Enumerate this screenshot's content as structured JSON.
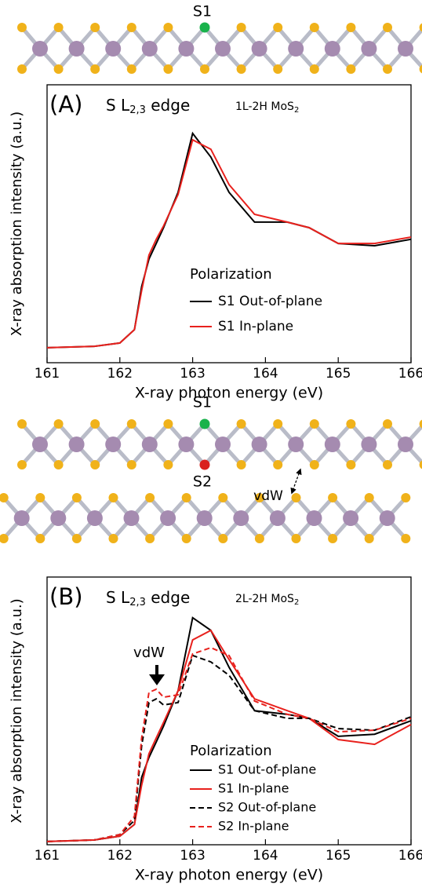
{
  "chart_data": [
    {
      "type": "line",
      "panel_label": "(A)",
      "edge_label": [
        "S L",
        "2,3",
        " edge"
      ],
      "sample_label": [
        "1L-2H MoS",
        "2"
      ],
      "xlabel": "X-ray photon energy (eV)",
      "ylabel": "X-ray absorption intensity (a.u.)",
      "xlim": [
        161,
        166
      ],
      "xticks": [
        161,
        162,
        163,
        164,
        165,
        166
      ],
      "ylim": [
        0,
        1
      ],
      "legend_title": "Polarization",
      "grid": false,
      "x": [
        161,
        161.65,
        162,
        162.2,
        162.3,
        162.4,
        162.5,
        162.6,
        162.8,
        163,
        163.25,
        163.5,
        163.85,
        164.3,
        164.6,
        165,
        165.5,
        166
      ],
      "series": [
        {
          "name": "S1 Out-of-plane",
          "color": "#000000",
          "linestyle": "solid",
          "values": [
            0.054,
            0.059,
            0.071,
            0.119,
            0.274,
            0.373,
            0.429,
            0.486,
            0.613,
            0.825,
            0.74,
            0.613,
            0.506,
            0.506,
            0.486,
            0.429,
            0.421,
            0.444
          ]
        },
        {
          "name": "S1 In-plane",
          "color": "#e8211d",
          "linestyle": "solid",
          "values": [
            0.054,
            0.059,
            0.071,
            0.119,
            0.26,
            0.387,
            0.444,
            0.492,
            0.605,
            0.802,
            0.768,
            0.641,
            0.534,
            0.506,
            0.486,
            0.429,
            0.429,
            0.452
          ]
        }
      ]
    },
    {
      "type": "line",
      "panel_label": "(B)",
      "edge_label": [
        "S L",
        "2,3",
        " edge"
      ],
      "sample_label": [
        "2L-2H MoS",
        "2"
      ],
      "xlabel": "X-ray photon energy (eV)",
      "ylabel": "X-ray absorption intensity (a.u.)",
      "xlim": [
        161,
        166
      ],
      "xticks": [
        161,
        162,
        163,
        164,
        165,
        166
      ],
      "ylim": [
        0,
        1
      ],
      "legend_title": "Polarization",
      "annotation": "vdW",
      "grid": false,
      "x": [
        161,
        161.65,
        162,
        162.2,
        162.3,
        162.4,
        162.5,
        162.6,
        162.8,
        163,
        163.25,
        163.5,
        163.85,
        164.3,
        164.6,
        165,
        165.5,
        166
      ],
      "series": [
        {
          "name": "S1 Out-of-plane",
          "color": "#000000",
          "linestyle": "solid",
          "values": [
            0.012,
            0.018,
            0.032,
            0.076,
            0.252,
            0.326,
            0.384,
            0.443,
            0.575,
            0.848,
            0.801,
            0.663,
            0.501,
            0.487,
            0.472,
            0.405,
            0.413,
            0.463
          ]
        },
        {
          "name": "S1 In-plane",
          "color": "#e8211d",
          "linestyle": "solid",
          "values": [
            0.012,
            0.018,
            0.032,
            0.076,
            0.223,
            0.34,
            0.399,
            0.457,
            0.575,
            0.765,
            0.801,
            0.692,
            0.545,
            0.501,
            0.472,
            0.393,
            0.375,
            0.449
          ]
        },
        {
          "name": "S2 Out-of-plane",
          "color": "#000000",
          "linestyle": "dashed",
          "values": [
            0.012,
            0.018,
            0.038,
            0.091,
            0.37,
            0.531,
            0.545,
            0.522,
            0.531,
            0.707,
            0.683,
            0.633,
            0.501,
            0.472,
            0.472,
            0.434,
            0.428,
            0.478
          ]
        },
        {
          "name": "S2 In-plane",
          "color": "#e8211d",
          "linestyle": "dashed",
          "values": [
            0.012,
            0.018,
            0.038,
            0.106,
            0.399,
            0.569,
            0.581,
            0.551,
            0.56,
            0.713,
            0.736,
            0.707,
            0.537,
            0.487,
            0.472,
            0.422,
            0.428,
            0.472
          ]
        }
      ]
    }
  ],
  "structures": [
    {
      "labels": [
        "S1"
      ]
    },
    {
      "labels": [
        "S1",
        "S2",
        "vdW"
      ]
    }
  ]
}
